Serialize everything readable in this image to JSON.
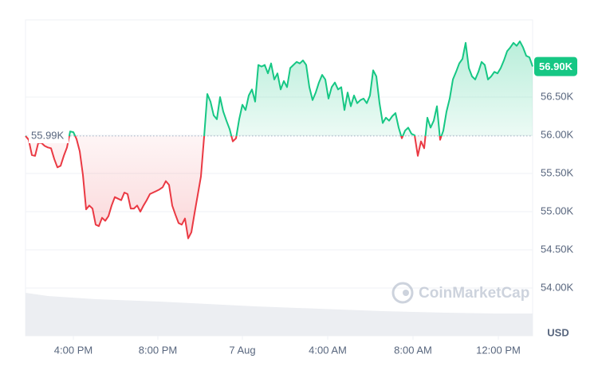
{
  "chart_data": {
    "type": "line",
    "watermark": "CoinMarketCap",
    "currency": "USD",
    "up_color": "#16c784",
    "down_color": "#ea3943",
    "baseline": {
      "value": 55990,
      "label": "55.99K"
    },
    "current": {
      "value": 56900,
      "label": "56.90K"
    },
    "xlim": [
      0,
      159
    ],
    "xticks": [
      {
        "value": 15,
        "label": "4:00 PM"
      },
      {
        "value": 41.5,
        "label": "8:00 PM"
      },
      {
        "value": 68,
        "label": "7 Aug"
      },
      {
        "value": 94.75,
        "label": "4:00 AM"
      },
      {
        "value": 121.5,
        "label": "8:00 AM"
      },
      {
        "value": 148.25,
        "label": "12:00 PM"
      }
    ],
    "ylim": [
      53375,
      57510
    ],
    "yticks": [
      {
        "value": 54000,
        "label": "54.00K"
      },
      {
        "value": 54500,
        "label": "54.50K"
      },
      {
        "value": 55000,
        "label": "55.00K"
      },
      {
        "value": 55500,
        "label": "55.50K"
      },
      {
        "value": 56000,
        "label": "56.00K"
      },
      {
        "value": 56500,
        "label": "56.50K"
      }
    ],
    "grid": true,
    "values": [
      55990,
      55940,
      55740,
      55730,
      55900,
      55900,
      55860,
      55840,
      55830,
      55690,
      55580,
      55600,
      55730,
      55840,
      56050,
      56040,
      55950,
      55790,
      55480,
      55030,
      55080,
      55040,
      54830,
      54810,
      54920,
      54880,
      54940,
      55080,
      55190,
      55170,
      55150,
      55250,
      55230,
      55040,
      55040,
      55080,
      55000,
      55080,
      55150,
      55230,
      55250,
      55270,
      55290,
      55320,
      55400,
      55350,
      55080,
      54960,
      54850,
      54830,
      54910,
      54650,
      54730,
      54980,
      55220,
      55460,
      55980,
      56540,
      56440,
      56260,
      56210,
      56500,
      56310,
      56190,
      56080,
      55920,
      55960,
      56210,
      56400,
      56330,
      56520,
      56600,
      56440,
      56920,
      56900,
      56920,
      56810,
      56940,
      56730,
      56810,
      56600,
      56710,
      56630,
      56880,
      56920,
      56960,
      56940,
      56980,
      56920,
      56630,
      56460,
      56560,
      56690,
      56790,
      56730,
      56480,
      56630,
      56690,
      56600,
      56630,
      56330,
      56560,
      56380,
      56520,
      56420,
      56460,
      56480,
      56420,
      56520,
      56850,
      56770,
      56420,
      56160,
      56230,
      56190,
      56250,
      56290,
      56100,
      55960,
      56060,
      56100,
      56020,
      56000,
      55730,
      55920,
      55830,
      56230,
      56100,
      56190,
      56380,
      55940,
      56060,
      56310,
      56480,
      56730,
      56830,
      56940,
      57000,
      57210,
      56880,
      56770,
      56730,
      56830,
      56960,
      56920,
      56730,
      56770,
      56830,
      56810,
      56880,
      56980,
      57100,
      57150,
      57210,
      57170,
      57230,
      57150,
      57040,
      57020,
      56900
    ]
  }
}
